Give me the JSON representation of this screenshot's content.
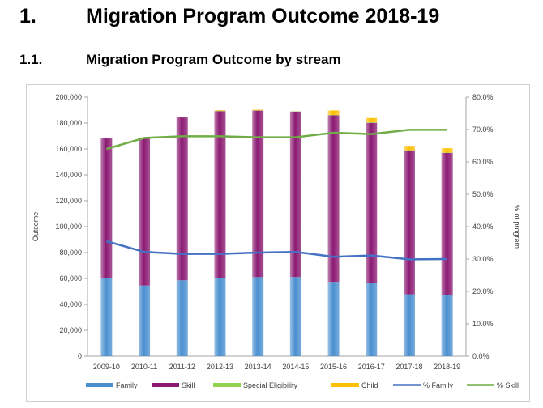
{
  "heading": {
    "number": "1.",
    "title": "Migration Program Outcome 2018-19"
  },
  "subheading": {
    "number": "1.1.",
    "title": "Migration Program Outcome by stream"
  },
  "chart_data": {
    "type": "bar",
    "stacked": true,
    "categories": [
      "2009-10",
      "2010-11",
      "2011-12",
      "2012-13",
      "2013-14",
      "2014-15",
      "2015-16",
      "2016-17",
      "2017-18",
      "2018-19"
    ],
    "series": [
      {
        "name": "Family",
        "type": "bar",
        "axis": "left",
        "color": "#4a8fd0",
        "values": [
          60250,
          54550,
          58600,
          60200,
          61050,
          61100,
          57400,
          56600,
          47750,
          47250
        ]
      },
      {
        "name": "Skill",
        "type": "bar",
        "axis": "left",
        "color": "#8b1a72",
        "values": [
          107850,
          113850,
          125750,
          128950,
          128550,
          127750,
          128550,
          123550,
          111100,
          109700
        ]
      },
      {
        "name": "Special Eligibility",
        "type": "bar",
        "axis": "left",
        "color": "#92d050",
        "values": [
          0,
          0,
          0,
          250,
          250,
          250,
          300,
          400,
          200,
          250
        ]
      },
      {
        "name": "Child",
        "type": "bar",
        "axis": "left",
        "color": "#ffc000",
        "values": [
          0,
          0,
          0,
          500,
          500,
          0,
          3500,
          3400,
          3300,
          3350
        ]
      },
      {
        "name": "% Family",
        "type": "line",
        "axis": "right",
        "color": "#4472c4",
        "values": [
          35.5,
          32.2,
          31.6,
          31.6,
          32.0,
          32.2,
          30.7,
          31.1,
          29.9,
          30.0
        ]
      },
      {
        "name": "% Skill",
        "type": "line",
        "axis": "right",
        "color": "#70ad47",
        "values": [
          64.0,
          67.4,
          67.9,
          67.9,
          67.6,
          67.6,
          69.0,
          68.6,
          69.9,
          69.9
        ]
      }
    ],
    "ylabel": "Outcome",
    "y2label": "% of program",
    "ylim": [
      0,
      200000
    ],
    "y2lim": [
      0,
      80
    ],
    "yticks": [
      "0",
      "20,000",
      "40,000",
      "60,000",
      "80,000",
      "100,000",
      "120,000",
      "140,000",
      "160,000",
      "180,000",
      "200,000"
    ],
    "y2ticks": [
      "0.0%",
      "10.0%",
      "20.0%",
      "30.0%",
      "40.0%",
      "50.0%",
      "60.0%",
      "70.0%",
      "80.0%"
    ],
    "legend": "bottom",
    "grid": false
  }
}
